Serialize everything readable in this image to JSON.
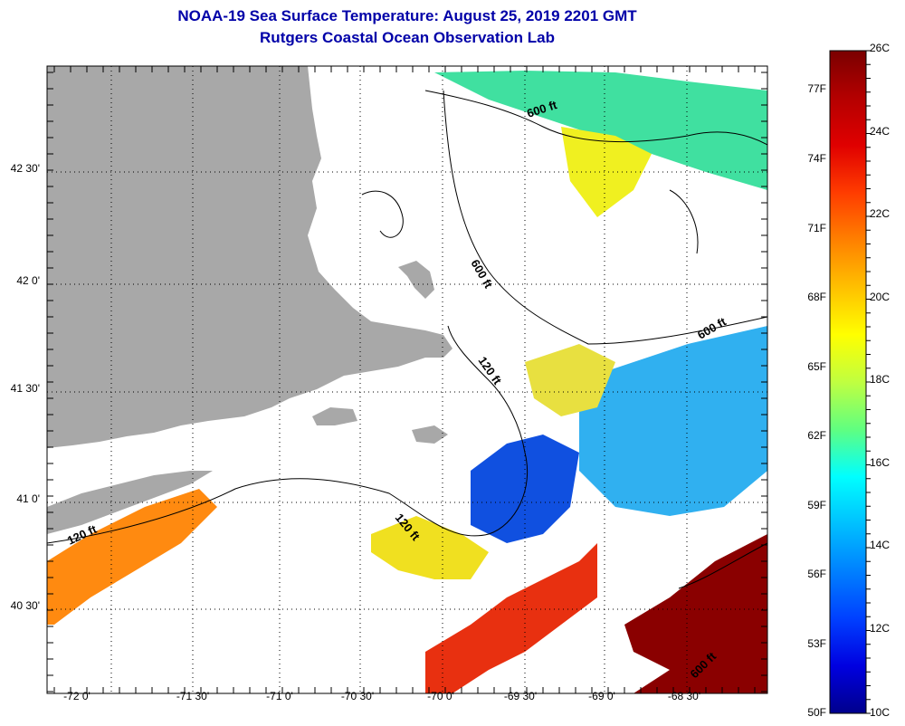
{
  "header": {
    "title": "NOAA-19 Sea Surface Temperature:  August 25, 2019 2201 GMT",
    "subtitle": "Rutgers Coastal Ocean Observation Lab"
  },
  "map": {
    "lon_ticks": [
      "-72 0'",
      "-71 30'",
      "-71 0'",
      "-70 30'",
      "-70 0'",
      "-69 30'",
      "-69 0'",
      "-68 30'"
    ],
    "lat_ticks": [
      "42 30'",
      "42 0'",
      "41 30'",
      "41 0'",
      "40 30'"
    ],
    "contour_labels": [
      "600 ft",
      "600 ft",
      "600 ft",
      "120 ft",
      "120 ft",
      "120 ft",
      "600 ft"
    ],
    "colors": {
      "land": "#a8a8a8",
      "background": "#ffffff",
      "grid": "#000000"
    }
  },
  "colorbar": {
    "celsius": [
      "26C",
      "24C",
      "22C",
      "20C",
      "18C",
      "16C",
      "14C",
      "12C",
      "10C"
    ],
    "fahrenheit": [
      "77F",
      "74F",
      "71F",
      "68F",
      "65F",
      "62F",
      "59F",
      "56F",
      "53F",
      "50F"
    ],
    "gradient": [
      "#7a0000",
      "#b40000",
      "#e00000",
      "#ff3c00",
      "#ff8000",
      "#ffc000",
      "#ffff00",
      "#c0ff40",
      "#60ff80",
      "#00ffff",
      "#00c0ff",
      "#0080ff",
      "#0040ff",
      "#0000e0",
      "#00008c"
    ]
  }
}
